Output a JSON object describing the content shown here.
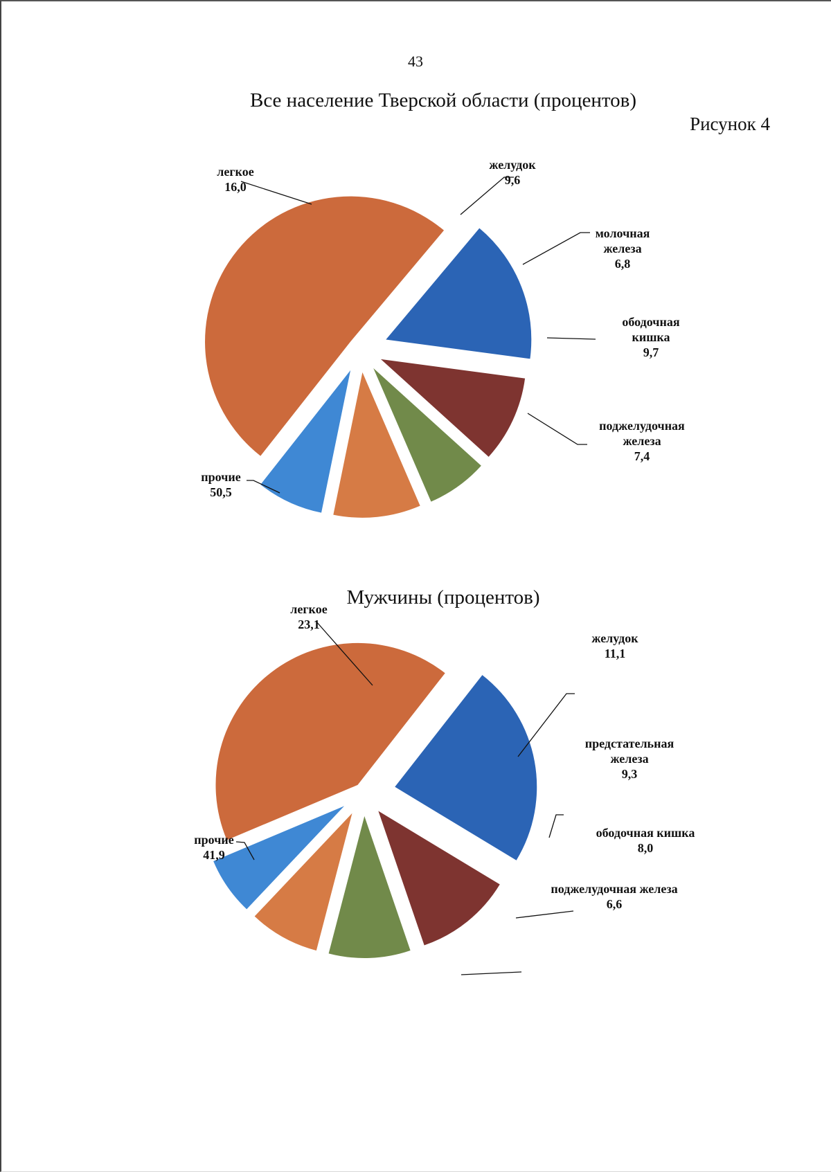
{
  "page_number": "43",
  "figure_label": "Рисунок 4",
  "chart_data": [
    {
      "type": "pie",
      "title": "Все население Тверской области (процентов)",
      "unit": "процентов",
      "slices": [
        {
          "label_lines": [
            "легкое"
          ],
          "value_text": "16,0",
          "value": 16.0,
          "color": "#2B64B5"
        },
        {
          "label_lines": [
            "желудок"
          ],
          "value_text": "9,6",
          "value": 9.6,
          "color": "#7E3430"
        },
        {
          "label_lines": [
            "молочная",
            "железа"
          ],
          "value_text": "6,8",
          "value": 6.8,
          "color": "#718A4A"
        },
        {
          "label_lines": [
            "ободочная",
            "кишка"
          ],
          "value_text": "9,7",
          "value": 9.7,
          "color": "#D67B45"
        },
        {
          "label_lines": [
            "поджелудочная",
            "железа"
          ],
          "value_text": "7,4",
          "value": 7.4,
          "color": "#3F88D4"
        },
        {
          "label_lines": [
            "прочие"
          ],
          "value_text": "50,5",
          "value": 50.5,
          "color": "#CC6A3C"
        }
      ]
    },
    {
      "type": "pie",
      "title": "Мужчины (процентов)",
      "unit": "процентов",
      "slices": [
        {
          "label_lines": [
            "легкое"
          ],
          "value_text": "23,1",
          "value": 23.1,
          "color": "#2B64B5"
        },
        {
          "label_lines": [
            "желудок"
          ],
          "value_text": "11,1",
          "value": 11.1,
          "color": "#7E3430"
        },
        {
          "label_lines": [
            "предстательная",
            "железа"
          ],
          "value_text": "9,3",
          "value": 9.3,
          "color": "#718A4A"
        },
        {
          "label_lines": [
            "ободочная кишка"
          ],
          "value_text": "8,0",
          "value": 8.0,
          "color": "#D67B45"
        },
        {
          "label_lines": [
            "поджелудочная железа"
          ],
          "value_text": "6,6",
          "value": 6.6,
          "color": "#3F88D4"
        },
        {
          "label_lines": [
            "прочие"
          ],
          "value_text": "41,9",
          "value": 41.9,
          "color": "#CC6A3C"
        }
      ]
    }
  ]
}
